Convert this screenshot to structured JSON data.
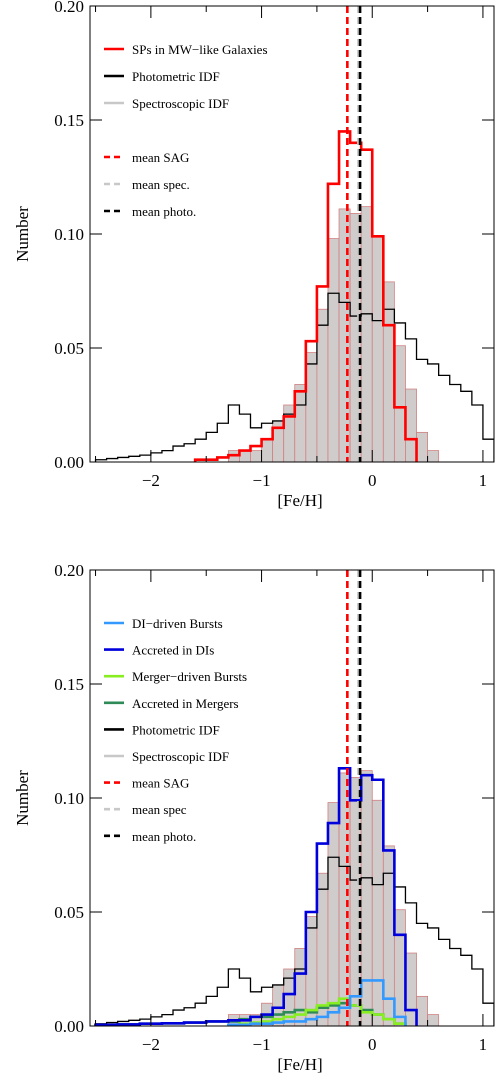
{
  "chart_data": [
    {
      "type": "histogram",
      "xlabel": "[Fe/H]",
      "ylabel": "Number",
      "xlim": [
        -2.55,
        1.1
      ],
      "ylim": [
        0,
        0.2
      ],
      "xticks": [
        -2,
        -1,
        0,
        1
      ],
      "xtick_labels": [
        "−2",
        "−1",
        "0",
        "1"
      ],
      "yticks": [
        0,
        0.05,
        0.1,
        0.15,
        0.2
      ],
      "ytick_labels": [
        "0.00",
        "0.05",
        "0.10",
        "0.15",
        "0.20"
      ],
      "legend": {
        "placement": "top-left",
        "entries": [
          {
            "label": "SPs in MW−like Galaxies",
            "color": "#ff0000",
            "style": "solid"
          },
          {
            "label": "Photometric IDF",
            "color": "#000000",
            "style": "solid"
          },
          {
            "label": "Spectroscopic IDF",
            "color": "#c8c8c8",
            "style": "solid"
          },
          {
            "label": "mean SAG",
            "color": "#ff0000",
            "style": "dashed"
          },
          {
            "label": "mean spec.",
            "color": "#c8c8c8",
            "style": "dashed"
          },
          {
            "label": "mean photo.",
            "color": "#000000",
            "style": "dashed"
          }
        ]
      },
      "bar_series": {
        "name": "Spectroscopic IDF",
        "fill": "#d0cccc",
        "edge": "#cf8080",
        "edges": [
          -1.3,
          -1.2,
          -1.1,
          -1.0,
          -0.9,
          -0.8,
          -0.7,
          -0.6,
          -0.5,
          -0.4,
          -0.3,
          -0.2,
          -0.1,
          0.0,
          0.1,
          0.2,
          0.3,
          0.4,
          0.5,
          0.6
        ],
        "values": [
          0.005,
          0.005,
          0.005,
          0.01,
          0.018,
          0.025,
          0.034,
          0.048,
          0.067,
          0.098,
          0.111,
          0.109,
          0.112,
          0.099,
          0.079,
          0.051,
          0.032,
          0.013,
          0.005
        ]
      },
      "step_series": [
        {
          "name": "Photometric IDF",
          "color": "#000000",
          "width": 1.3,
          "edges": [
            -2.5,
            -2.4,
            -2.3,
            -2.2,
            -2.1,
            -2.0,
            -1.9,
            -1.8,
            -1.7,
            -1.6,
            -1.5,
            -1.4,
            -1.3,
            -1.2,
            -1.1,
            -1.0,
            -0.9,
            -0.8,
            -0.7,
            -0.6,
            -0.5,
            -0.4,
            -0.3,
            -0.2,
            -0.1,
            0.0,
            0.1,
            0.2,
            0.3,
            0.4,
            0.5,
            0.6,
            0.7,
            0.8,
            0.9,
            1.0,
            1.1
          ],
          "values": [
            0.001,
            0.0015,
            0.002,
            0.0025,
            0.003,
            0.004,
            0.005,
            0.007,
            0.008,
            0.01,
            0.013,
            0.017,
            0.025,
            0.021,
            0.015,
            0.017,
            0.018,
            0.021,
            0.025,
            0.043,
            0.06,
            0.074,
            0.07,
            0.064,
            0.065,
            0.062,
            0.067,
            0.061,
            0.054,
            0.045,
            0.043,
            0.038,
            0.034,
            0.031,
            0.025,
            0.01
          ]
        },
        {
          "name": "SPs in MW−like Galaxies",
          "color": "#ff0000",
          "width": 2.6,
          "edges": [
            -1.6,
            -1.5,
            -1.4,
            -1.3,
            -1.2,
            -1.1,
            -1.0,
            -0.9,
            -0.8,
            -0.7,
            -0.6,
            -0.5,
            -0.4,
            -0.3,
            -0.2,
            -0.1,
            0.0,
            0.1,
            0.2,
            0.3,
            0.4
          ],
          "values": [
            0.001,
            0.001,
            0.002,
            0.003,
            0.005,
            0.007,
            0.01,
            0.015,
            0.02,
            0.031,
            0.053,
            0.077,
            0.122,
            0.145,
            0.14,
            0.137,
            0.099,
            0.06,
            0.024,
            0.01
          ]
        }
      ],
      "mean_lines": [
        {
          "name": "mean SAG",
          "x": -0.225,
          "color": "#ff0000"
        },
        {
          "name": "mean spec.",
          "x": -0.125,
          "color": "#c8c8c8"
        },
        {
          "name": "mean photo.",
          "x": -0.11,
          "color": "#000000"
        }
      ]
    },
    {
      "type": "histogram",
      "xlabel": "[Fe/H]",
      "ylabel": "Number",
      "xlim": [
        -2.55,
        1.1
      ],
      "ylim": [
        0,
        0.2
      ],
      "xticks": [
        -2,
        -1,
        0,
        1
      ],
      "xtick_labels": [
        "−2",
        "−1",
        "0",
        "1"
      ],
      "yticks": [
        0,
        0.05,
        0.1,
        0.15,
        0.2
      ],
      "ytick_labels": [
        "0.00",
        "0.05",
        "0.10",
        "0.15",
        "0.20"
      ],
      "legend": {
        "placement": "top-left",
        "entries": [
          {
            "label": "DI−driven Bursts",
            "color": "#3399ff",
            "style": "solid"
          },
          {
            "label": "Accreted in DIs",
            "color": "#0000dd",
            "style": "solid"
          },
          {
            "label": "Merger−driven Bursts",
            "color": "#88ee22",
            "style": "solid"
          },
          {
            "label": "Accreted in Mergers",
            "color": "#2e8b57",
            "style": "solid"
          },
          {
            "label": "Photometric IDF",
            "color": "#000000",
            "style": "solid"
          },
          {
            "label": "Spectroscopic IDF",
            "color": "#c8c8c8",
            "style": "solid"
          },
          {
            "label": "mean SAG",
            "color": "#ff0000",
            "style": "dashed"
          },
          {
            "label": "mean spec",
            "color": "#c8c8c8",
            "style": "dashed"
          },
          {
            "label": "mean photo.",
            "color": "#000000",
            "style": "dashed"
          }
        ]
      },
      "bar_series": {
        "name": "Spectroscopic IDF",
        "fill": "#d0cccc",
        "edge": "#cf8080",
        "edges": [
          -1.3,
          -1.2,
          -1.1,
          -1.0,
          -0.9,
          -0.8,
          -0.7,
          -0.6,
          -0.5,
          -0.4,
          -0.3,
          -0.2,
          -0.1,
          0.0,
          0.1,
          0.2,
          0.3,
          0.4,
          0.5,
          0.6
        ],
        "values": [
          0.005,
          0.005,
          0.005,
          0.01,
          0.018,
          0.025,
          0.034,
          0.048,
          0.067,
          0.098,
          0.111,
          0.109,
          0.112,
          0.099,
          0.079,
          0.051,
          0.032,
          0.013,
          0.005
        ]
      },
      "step_series": [
        {
          "name": "Photometric IDF",
          "color": "#000000",
          "width": 1.3,
          "edges": [
            -2.5,
            -2.4,
            -2.3,
            -2.2,
            -2.1,
            -2.0,
            -1.9,
            -1.8,
            -1.7,
            -1.6,
            -1.5,
            -1.4,
            -1.3,
            -1.2,
            -1.1,
            -1.0,
            -0.9,
            -0.8,
            -0.7,
            -0.6,
            -0.5,
            -0.4,
            -0.3,
            -0.2,
            -0.1,
            0.0,
            0.1,
            0.2,
            0.3,
            0.4,
            0.5,
            0.6,
            0.7,
            0.8,
            0.9,
            1.0,
            1.1
          ],
          "values": [
            0.001,
            0.0015,
            0.002,
            0.0025,
            0.003,
            0.004,
            0.005,
            0.007,
            0.008,
            0.01,
            0.013,
            0.017,
            0.025,
            0.021,
            0.015,
            0.017,
            0.018,
            0.021,
            0.025,
            0.043,
            0.06,
            0.074,
            0.07,
            0.064,
            0.065,
            0.062,
            0.067,
            0.061,
            0.054,
            0.045,
            0.043,
            0.038,
            0.034,
            0.031,
            0.025,
            0.01
          ]
        },
        {
          "name": "Accreted in Mergers",
          "color": "#2e8b57",
          "width": 2.6,
          "edges": [
            -2.5,
            -2.3,
            -2.1,
            -1.9,
            -1.7,
            -1.5,
            -1.3,
            -1.2,
            -1.1,
            -1.0,
            -0.9,
            -0.8,
            -0.7,
            -0.6,
            -0.5,
            -0.4,
            -0.3,
            -0.2,
            -0.1,
            0.0,
            0.1,
            0.2,
            0.3
          ],
          "values": [
            0.0005,
            0.0007,
            0.001,
            0.0012,
            0.0015,
            0.002,
            0.002,
            0.003,
            0.004,
            0.004,
            0.005,
            0.006,
            0.007,
            0.006,
            0.008,
            0.009,
            0.01,
            0.009,
            0.007,
            0.005,
            0.003,
            0.001
          ]
        },
        {
          "name": "Merger−driven Bursts",
          "color": "#88ee22",
          "width": 2.6,
          "edges": [
            -1.3,
            -1.2,
            -1.1,
            -1.0,
            -0.9,
            -0.8,
            -0.7,
            -0.6,
            -0.5,
            -0.4,
            -0.3,
            -0.2,
            -0.1,
            0.0,
            0.1,
            0.2,
            0.3
          ],
          "values": [
            0.0005,
            0.001,
            0.0015,
            0.002,
            0.003,
            0.004,
            0.005,
            0.007,
            0.009,
            0.01,
            0.012,
            0.009,
            0.006,
            0.005,
            0.003,
            0.001
          ]
        },
        {
          "name": "DI−driven Bursts",
          "color": "#3399ff",
          "width": 2.6,
          "edges": [
            -1.3,
            -1.2,
            -1.1,
            -1.0,
            -0.9,
            -0.8,
            -0.7,
            -0.6,
            -0.5,
            -0.4,
            -0.3,
            -0.2,
            -0.1,
            0.0,
            0.1,
            0.2,
            0.3
          ],
          "values": [
            0.0005,
            0.0005,
            0.001,
            0.001,
            0.0015,
            0.002,
            0.002,
            0.003,
            0.004,
            0.006,
            0.008,
            0.013,
            0.02,
            0.02,
            0.012,
            0.004
          ]
        },
        {
          "name": "Accreted in DIs",
          "color": "#0000dd",
          "width": 2.6,
          "edges": [
            -2.5,
            -2.3,
            -2.1,
            -1.9,
            -1.7,
            -1.5,
            -1.3,
            -1.1,
            -1.0,
            -0.9,
            -0.8,
            -0.7,
            -0.6,
            -0.5,
            -0.4,
            -0.3,
            -0.2,
            -0.1,
            0.0,
            0.1,
            0.2,
            0.3,
            0.4
          ],
          "values": [
            0.0005,
            0.0007,
            0.001,
            0.0012,
            0.0015,
            0.002,
            0.0025,
            0.004,
            0.005,
            0.008,
            0.014,
            0.023,
            0.05,
            0.08,
            0.089,
            0.113,
            0.099,
            0.11,
            0.108,
            0.077,
            0.04,
            0.007
          ]
        }
      ],
      "mean_lines": [
        {
          "name": "mean SAG",
          "x": -0.225,
          "color": "#ff0000"
        },
        {
          "name": "mean spec",
          "x": -0.125,
          "color": "#c8c8c8"
        },
        {
          "name": "mean photo.",
          "x": -0.11,
          "color": "#000000"
        }
      ]
    }
  ]
}
